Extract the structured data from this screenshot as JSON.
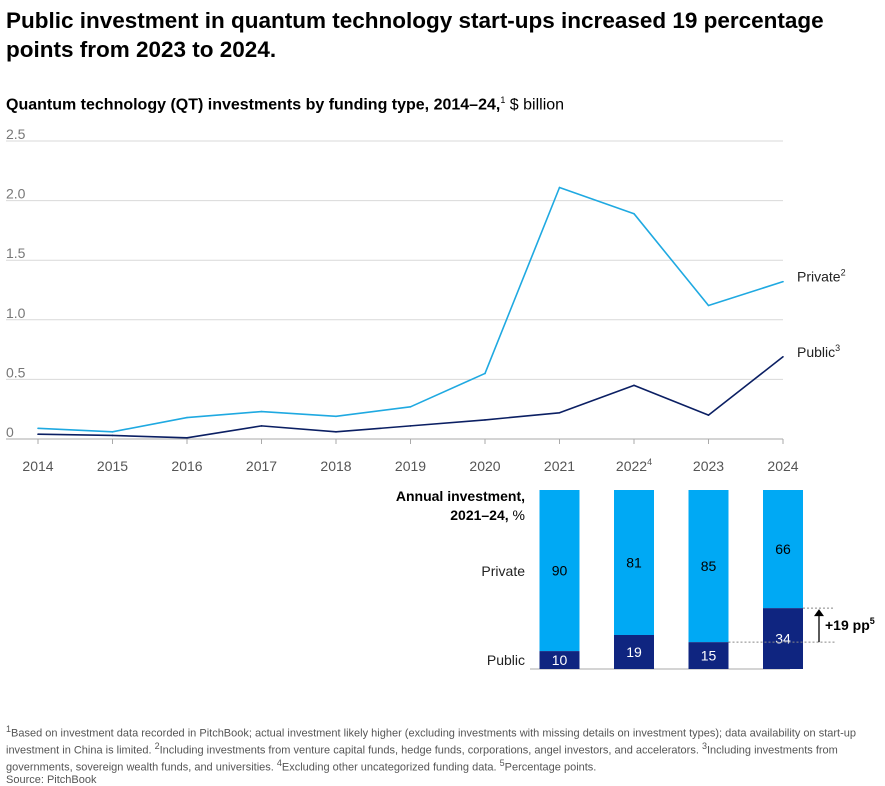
{
  "headline": "Public investment in quantum technology start-ups increased 19 percentage points from 2023 to 2024.",
  "chart_title": {
    "bold": "Quantum technology (QT) investments by funding type, 2014–24,",
    "sup": "1",
    "unit": "$ billion"
  },
  "colors": {
    "private": "#1fa9e1",
    "public": "#0b1f63",
    "bar_private": "#00a9f4",
    "bar_public": "#0f2580",
    "grid": "#d9d9d9"
  },
  "chart_data": [
    {
      "type": "line",
      "x": [
        "2014",
        "2015",
        "2016",
        "2017",
        "2018",
        "2019",
        "2020",
        "2021",
        "2022",
        "2023",
        "2024"
      ],
      "x_labels": [
        "2014",
        "2015",
        "2016",
        "2017",
        "2018",
        "2019",
        "2020",
        "2021",
        "2022",
        "2023",
        "2024"
      ],
      "x_label_sups": [
        "",
        "",
        "",
        "",
        "",
        "",
        "",
        "",
        "4",
        "",
        ""
      ],
      "y_ticks": [
        "2.5",
        "2.0",
        "1.5",
        "1.0",
        "0.5",
        "0"
      ],
      "ylim": [
        0,
        2.5
      ],
      "series": [
        {
          "name": "Private",
          "sup": "2",
          "values": [
            0.09,
            0.06,
            0.18,
            0.23,
            0.19,
            0.27,
            0.55,
            2.11,
            1.89,
            1.12,
            1.32
          ]
        },
        {
          "name": "Public",
          "sup": "3",
          "values": [
            0.04,
            0.03,
            0.01,
            0.11,
            0.06,
            0.11,
            0.16,
            0.22,
            0.45,
            0.2,
            0.69
          ]
        }
      ]
    },
    {
      "type": "bar",
      "stacked": true,
      "title_line1": "Annual investment,",
      "title_line2": "2021–24,",
      "title_unit": "%",
      "categories": [
        "2021",
        "2022",
        "2023",
        "2024"
      ],
      "series": [
        {
          "name": "Private",
          "values": [
            90,
            81,
            85,
            66
          ]
        },
        {
          "name": "Public",
          "values": [
            10,
            19,
            15,
            34
          ]
        }
      ],
      "annotation": "+19 pp",
      "annotation_sup": "5"
    }
  ],
  "footnotes": {
    "f1_sup": "1",
    "f1": "Based on investment data recorded in PitchBook; actual investment likely higher (excluding investments with missing details on investment types); data availability on start-up investment in China is limited.",
    "f2_sup": "2",
    "f2": "Including investments from venture capital funds, hedge funds, corporations, angel investors, and accelerators.",
    "f3_sup": "3",
    "f3": "Including investments from governments, sovereign wealth funds, and universities.",
    "f4_sup": "4",
    "f4": "Excluding other uncategorized funding data.",
    "f5_sup": "5",
    "f5": "Percentage points.",
    "source": "Source: PitchBook"
  }
}
